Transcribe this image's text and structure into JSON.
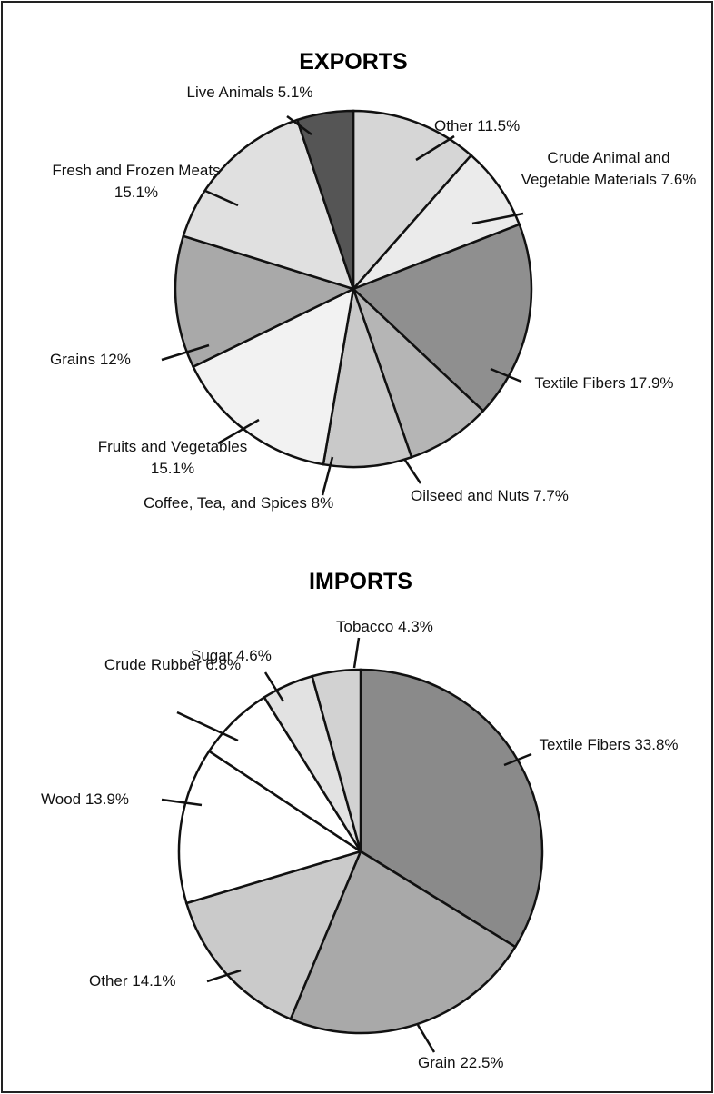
{
  "chart_data": [
    {
      "type": "pie",
      "title": "EXPORTS",
      "categories": [
        "Other",
        "Crude Animal and Vegetable Materials",
        "Textile Fibers",
        "Oilseed and Nuts",
        "Coffee, Tea, and Spices",
        "Fruits and Vegetables",
        "Grains",
        "Fresh and Frozen Meats",
        "Live Animals"
      ],
      "values": [
        11.5,
        7.6,
        17.9,
        7.7,
        8,
        15.1,
        12,
        15.1,
        5.1
      ],
      "value_labels": [
        "11.5%",
        "7.6%",
        "17.9%",
        "7.7%",
        "8%",
        "15.1%",
        "12%",
        "15.1%",
        "5.1%"
      ],
      "colors": [
        "#d6d6d6",
        "#ebebeb",
        "#8f8f8f",
        "#b5b5b5",
        "#c9c9c9",
        "#f2f2f2",
        "#a9a9a9",
        "#e0e0e0",
        "#555555"
      ]
    },
    {
      "type": "pie",
      "title": "IMPORTS",
      "categories": [
        "Textile Fibers",
        "Grain",
        "Other",
        "Wood",
        "Crude Rubber",
        "Sugar",
        "Tobacco"
      ],
      "values": [
        33.8,
        22.5,
        14.1,
        13.9,
        6.8,
        4.6,
        4.3
      ],
      "value_labels": [
        "33.8%",
        "22.5%",
        "14.1%",
        "13.9%",
        "6.8%",
        "4.6%",
        "4.3%"
      ],
      "colors": [
        "#8a8a8a",
        "#a9a9a9",
        "#cacaca",
        "#ffffff",
        "#ffffff",
        "#e2e2e2",
        "#d2d2d2"
      ]
    }
  ]
}
